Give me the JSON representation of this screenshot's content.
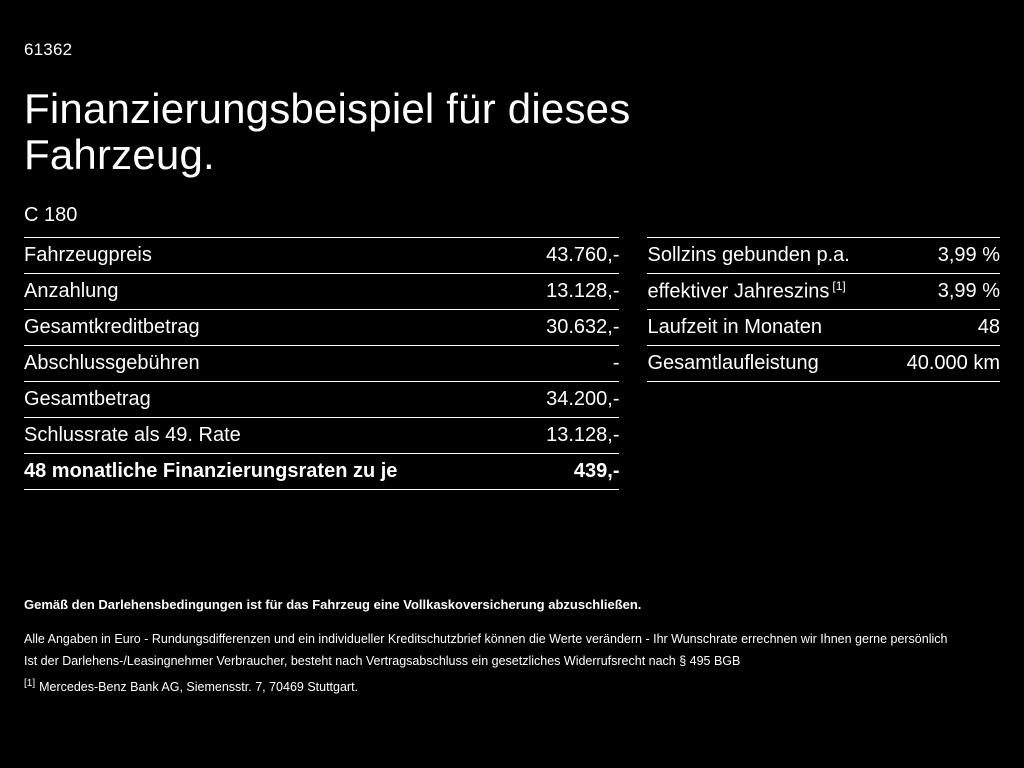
{
  "page": {
    "doc_id": "61362",
    "title": "Finanzierungsbeispiel für dieses Fahrzeug.",
    "model": "C 180"
  },
  "left_table": {
    "rows": [
      {
        "label": "Fahrzeugpreis",
        "value": "43.760,-"
      },
      {
        "label": "Anzahlung",
        "value": "13.128,-"
      },
      {
        "label": "Gesamtkreditbetrag",
        "value": "30.632,-"
      },
      {
        "label": "Abschlussgebühren",
        "value": "-"
      },
      {
        "label": "Gesamtbetrag",
        "value": "34.200,-"
      },
      {
        "label": "Schlussrate als 49. Rate",
        "value": "13.128,-"
      },
      {
        "label": "48 monatliche Finanzierungsraten zu je",
        "value": "439,-"
      }
    ]
  },
  "right_table": {
    "rows": [
      {
        "label": "Sollzins gebunden p.a.",
        "value": "3,99 %"
      },
      {
        "label": "effektiver Jahreszins",
        "sup": "[1]",
        "value": "3,99 %"
      },
      {
        "label": "Laufzeit in Monaten",
        "value": "48"
      },
      {
        "label": "Gesamtlaufleistung",
        "value": "40.000 km"
      }
    ]
  },
  "footer": {
    "note_bold": "Gemäß den Darlehensbedingungen ist für das Fahrzeug eine Vollkaskoversicherung abzuschließen.",
    "note1": "Alle Angaben in Euro - Rundungsdifferenzen und ein individueller Kreditschutzbrief können die Werte verändern - Ihr Wunschrate errechnen wir Ihnen gerne persönlich",
    "note2": "Ist der Darlehens-/Leasingnehmer Verbraucher, besteht nach Vertragsabschluss ein gesetzliches Widerrufsrecht nach § 495 BGB",
    "ref_marker": "[1]",
    "ref_text": "Mercedes-Benz Bank AG, Siemensstr. 7, 70469 Stuttgart."
  },
  "colors": {
    "background": "#000000",
    "text": "#ffffff",
    "divider": "#ffffff"
  }
}
